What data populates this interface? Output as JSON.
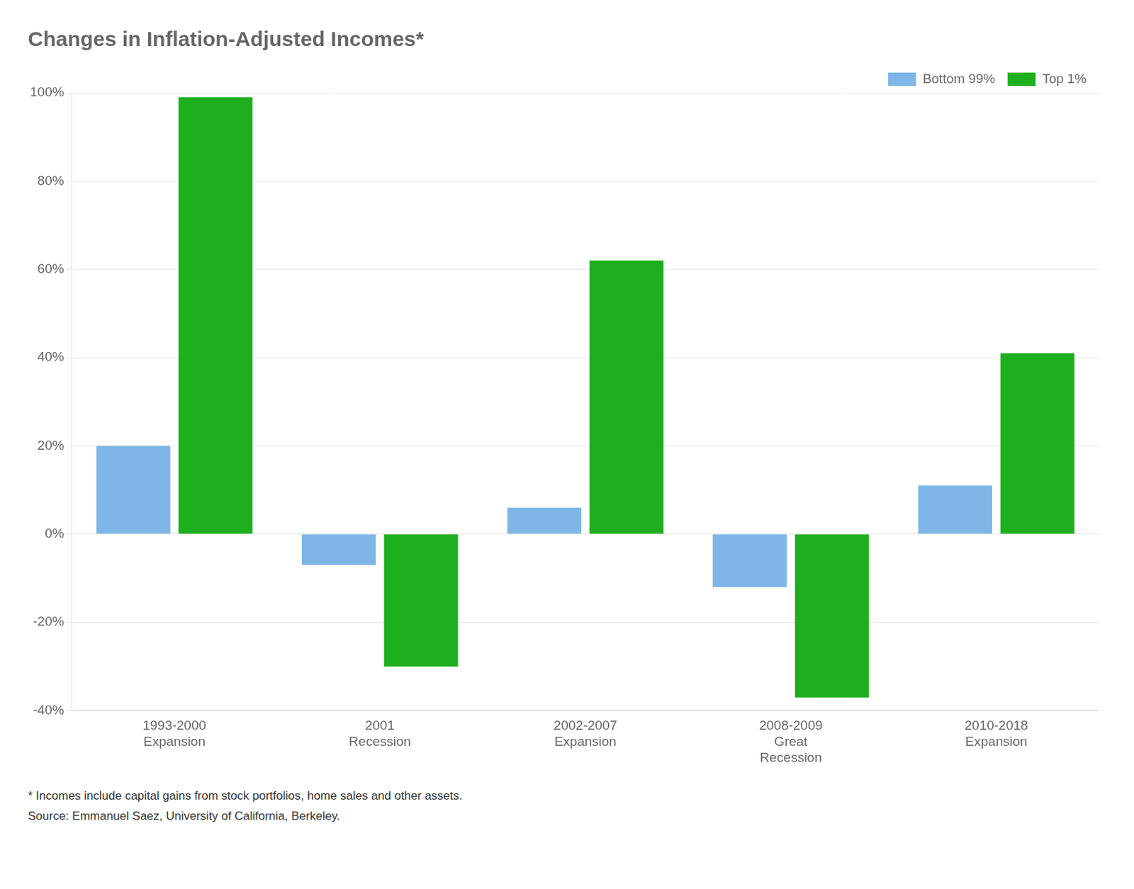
{
  "chart_data": {
    "type": "bar",
    "title": "Changes in Inflation-Adjusted Incomes*",
    "categories": [
      "1993-2000\nExpansion",
      "2001\nRecession",
      "2002-2007\nExpansion",
      "2008-2009\nGreat\nRecession",
      "2010-2018\nExpansion"
    ],
    "series": [
      {
        "name": "Bottom 99%",
        "color": "#7EB6E8",
        "values": [
          20,
          -7,
          6,
          -12,
          11
        ]
      },
      {
        "name": "Top 1%",
        "color": "#1DAF1D",
        "values": [
          99,
          -30,
          62,
          -37,
          41
        ]
      }
    ],
    "ylim": [
      -40,
      100
    ],
    "yticks": [
      {
        "value": -40,
        "label": "-40%"
      },
      {
        "value": -20,
        "label": "-20%"
      },
      {
        "value": 0,
        "label": "0%"
      },
      {
        "value": 20,
        "label": "20%"
      },
      {
        "value": 40,
        "label": "40%"
      },
      {
        "value": 60,
        "label": "60%"
      },
      {
        "value": 80,
        "label": "80%"
      },
      {
        "value": 100,
        "label": "100%"
      }
    ],
    "grid": true,
    "legend": "top-right",
    "annotations": [
      "* Incomes include capital gains from stock portfolios, home sales and other assets.",
      "Source: Emmanuel Saez, University of California, Berkeley."
    ]
  }
}
